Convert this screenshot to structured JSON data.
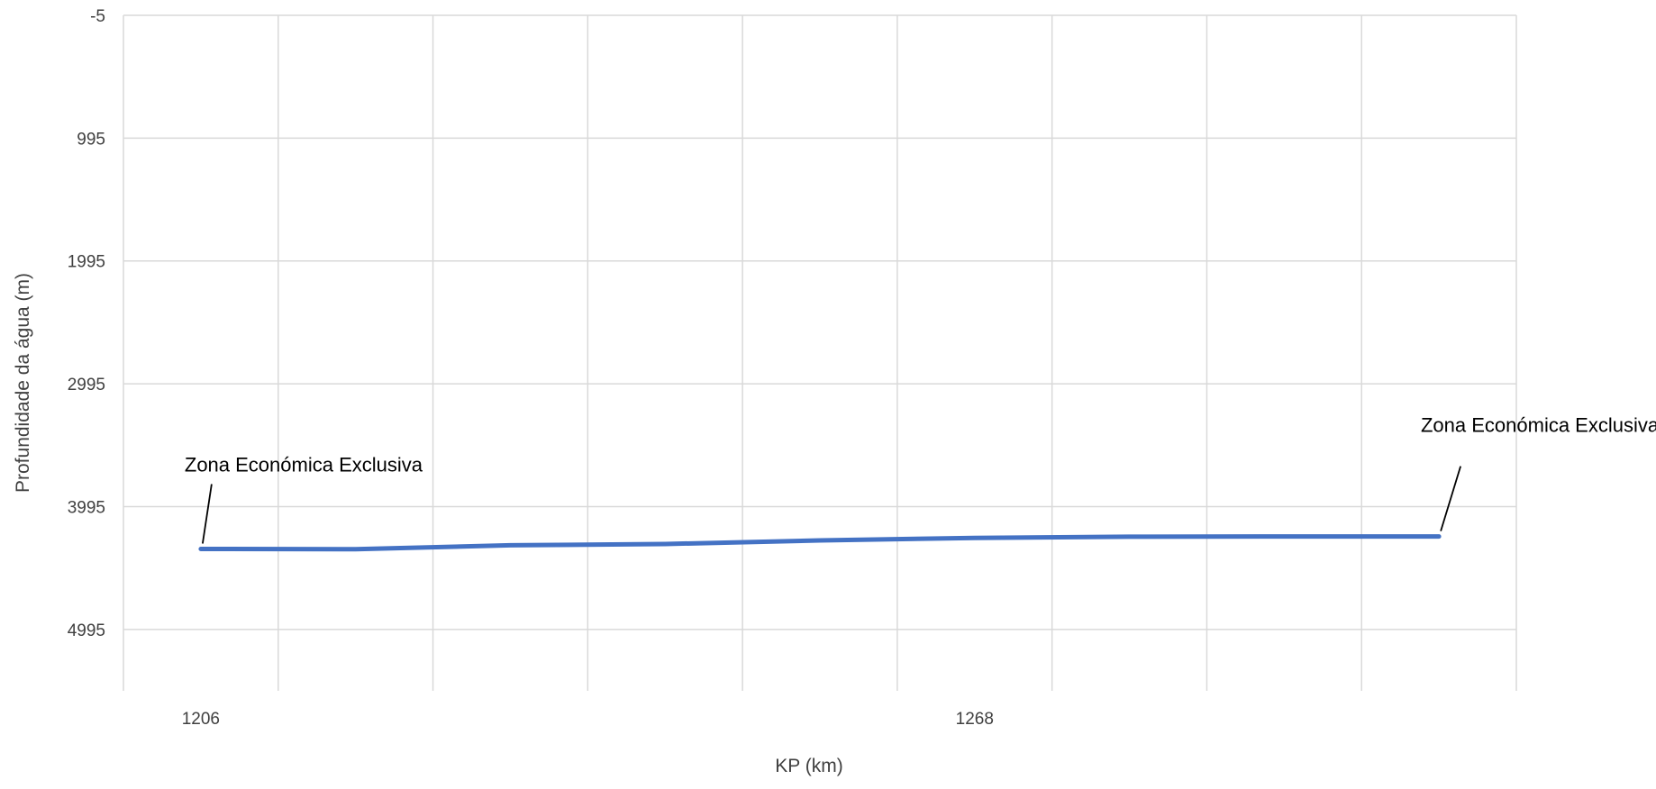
{
  "chart_data": {
    "type": "line",
    "title": "",
    "xlabel": "KP (km)",
    "ylabel": "Profundidade da água (m)",
    "y_inverted": true,
    "ylim": [
      -5,
      5495
    ],
    "yticks": [
      "-5",
      "995",
      "1995",
      "2995",
      "3995",
      "4995"
    ],
    "yticks_values": [
      -5,
      995,
      1995,
      2995,
      3995,
      4995
    ],
    "x_categories_count": 9,
    "xtick_labels": [
      {
        "index": 0,
        "label": "1206"
      },
      {
        "index": 5,
        "label": "1268"
      }
    ],
    "series": [
      {
        "x": [
          1206,
          1218.4,
          1230.8,
          1243.2,
          1255.6,
          1268,
          1280.4,
          1292.8,
          1305.2
        ],
        "values": [
          4340,
          4342,
          4310,
          4300,
          4270,
          4250,
          4240,
          4238,
          4238
        ]
      }
    ],
    "annotations": [
      {
        "text": "Zona Económica Exclusiva",
        "point_index": 0
      },
      {
        "text": "Zona Económica Exclusiva",
        "point_index": 8
      }
    ],
    "grid": true,
    "legend": "none",
    "colors": {
      "line": "#4472C4",
      "grid": "#D9D9D9",
      "text": "#404040",
      "annotation": "#000000"
    }
  }
}
